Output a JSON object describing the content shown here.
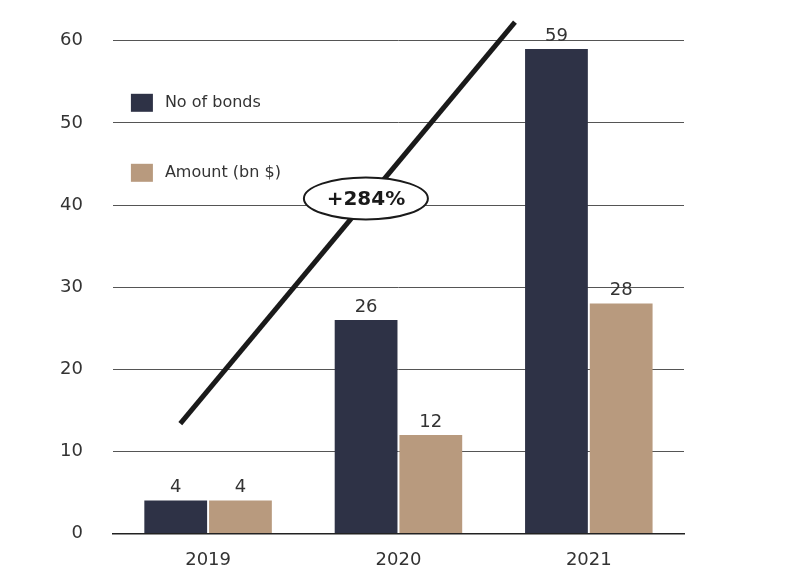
{
  "chart_data": {
    "type": "bar",
    "categories": [
      "2019",
      "2020",
      "2021"
    ],
    "series": [
      {
        "name": "No of bonds",
        "color": "#2e3246",
        "values": [
          4,
          26,
          59
        ]
      },
      {
        "name": "Amount (bn $)",
        "color": "#b89a7e",
        "values": [
          4,
          12,
          28
        ]
      }
    ],
    "ylim": [
      0,
      60
    ],
    "yticks": [
      0,
      10,
      20,
      30,
      40,
      50,
      60
    ],
    "grid": true,
    "legend": "upper left",
    "data_labels": true,
    "annotation": "+284%"
  }
}
